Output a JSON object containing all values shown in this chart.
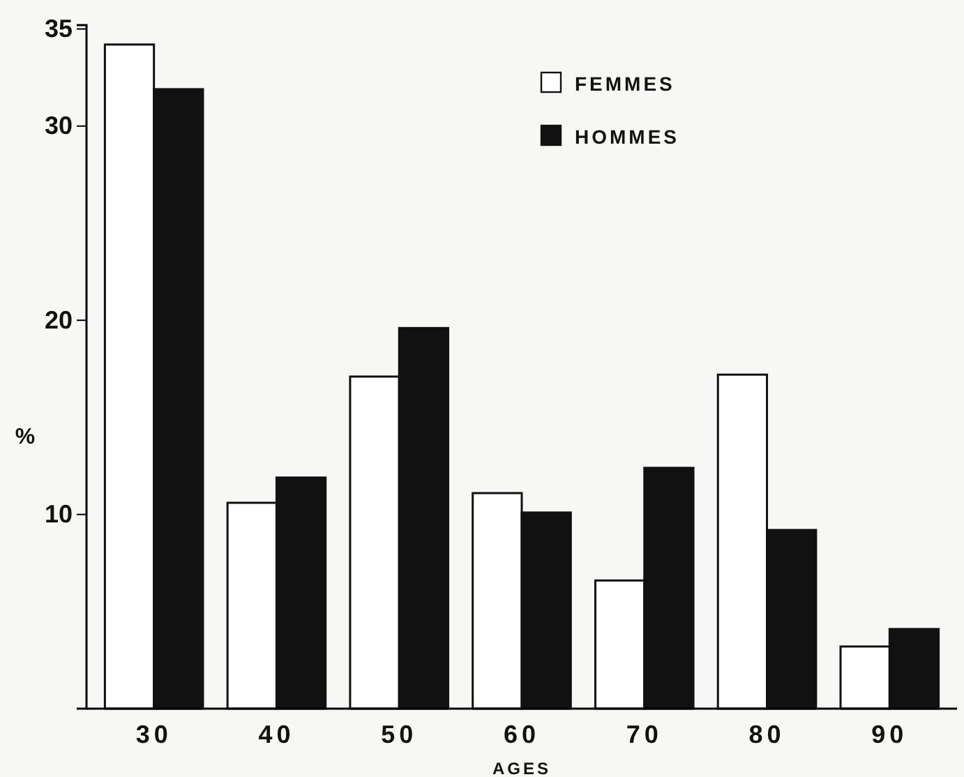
{
  "chart_data": {
    "type": "bar",
    "xlabel": "AGES",
    "ylabel": "%",
    "categories": [
      "30",
      "40",
      "50",
      "60",
      "70",
      "80",
      "90"
    ],
    "series": [
      {
        "name": "FEMMES",
        "color": "#ffffff",
        "values": [
          34.2,
          10.6,
          17.1,
          11.1,
          6.6,
          17.2,
          3.2
        ]
      },
      {
        "name": "HOMMES",
        "color": "#111111",
        "values": [
          31.9,
          11.9,
          19.6,
          10.1,
          12.4,
          9.2,
          4.1
        ]
      }
    ],
    "ylim": [
      0,
      35.2
    ],
    "yticks": [
      10,
      20,
      30,
      35
    ],
    "grid": false,
    "legend": "top right"
  }
}
